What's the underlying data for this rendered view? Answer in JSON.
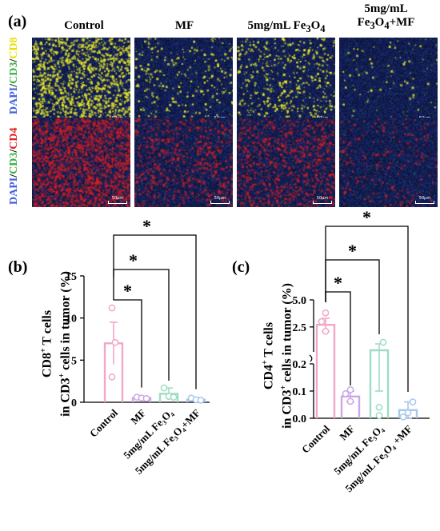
{
  "panel_a": {
    "label": "(a)",
    "columns": [
      {
        "text": "Control"
      },
      {
        "text": "MF"
      },
      {
        "text_parts": [
          "5mg/mL Fe",
          "3",
          "O",
          "4"
        ]
      },
      {
        "line1": "5mg/mL",
        "line2_parts": [
          "Fe",
          "3",
          "O",
          "4",
          "+MF"
        ]
      }
    ],
    "row_labels": [
      {
        "dapi": "DAPI",
        "slash1": "/",
        "cd3": "CD3",
        "slash2": "/",
        "marker": "CD8",
        "dapi_color": "#3f5fe0",
        "cd3_color": "#3cb043",
        "marker_color": "#e8e000"
      },
      {
        "dapi": "DAPI",
        "slash1": "/",
        "cd3": "CD3",
        "slash2": "/",
        "marker": "CD4",
        "dapi_color": "#3f5fe0",
        "cd3_color": "#3cb043",
        "marker_color": "#e02020"
      }
    ],
    "scale_bar": "50μm",
    "density": {
      "cd8": [
        0.95,
        0.18,
        0.35,
        0.06
      ],
      "cd4": [
        0.95,
        0.35,
        0.4,
        0.12
      ]
    }
  },
  "chart_data": [
    {
      "panel": "(b)",
      "type": "bar",
      "ylabel_line1": "CD8",
      "ylabel_sup1": "+",
      "ylabel_line1_rest": " T cells",
      "ylabel_line2": "in CD3",
      "ylabel_sup2": "+",
      "ylabel_line2_rest": " cells in tumor (%)",
      "ylim": [
        0,
        15
      ],
      "yticks": [
        "0",
        "5",
        "10",
        "15"
      ],
      "ytick_values": [
        0,
        5,
        10,
        15
      ],
      "categories": [
        "Control",
        "MF",
        "5mg/mL Fe₃O₄",
        "5mg/mL Fe₃O₄+MF"
      ],
      "values": [
        7.0,
        0.5,
        1.0,
        0.3
      ],
      "errors": [
        2.5,
        0.15,
        0.7,
        0.25
      ],
      "points": [
        [
          11.2,
          7.1,
          3.0
        ],
        [
          0.6,
          0.5,
          0.45
        ],
        [
          1.7,
          0.7,
          0.6
        ],
        [
          0.5,
          0.3,
          0.25
        ]
      ],
      "colors": [
        "#f2a7c8",
        "#cba7e8",
        "#9fdcc4",
        "#a6c8ec"
      ],
      "significance": [
        {
          "from": 0,
          "to": 1,
          "label": "*"
        },
        {
          "from": 0,
          "to": 2,
          "label": "*"
        },
        {
          "from": 0,
          "to": 3,
          "label": "*"
        }
      ]
    },
    {
      "panel": "(c)",
      "type": "bar",
      "broken_axis": true,
      "ylabel_line1": "CD4",
      "ylabel_sup1": "+",
      "ylabel_line1_rest": " T cells",
      "ylabel_line2": "in CD3",
      "ylabel_sup2": "+",
      "ylabel_line2_rest": " cells in tumor (%)",
      "lower_ylim": [
        0,
        0.2
      ],
      "upper_ylim": [
        0.2,
        5.0
      ],
      "yticks_lower": [
        "0.0",
        "0.1",
        "0.2"
      ],
      "ytick_lower_values": [
        0,
        0.1,
        0.2
      ],
      "yticks_upper": [
        "2.5",
        "5.0"
      ],
      "ytick_upper_values": [
        2.5,
        5.0
      ],
      "categories": [
        "Control",
        "MF",
        "5mg/mL Fe₃O₄",
        "5mg/mL Fe₃O₄ +MF"
      ],
      "values": [
        2.7,
        0.08,
        0.17,
        0.03
      ],
      "errors": [
        0.6,
        0.02,
        0.07,
        0.03
      ],
      "points": [
        [
          3.8,
          3.0,
          2.1
        ],
        [
          0.105,
          0.09,
          0.062
        ],
        [
          0.33,
          0.04,
          0.01
        ],
        [
          0.06,
          0.02,
          0.005
        ]
      ],
      "colors": [
        "#f2a7c8",
        "#cba7e8",
        "#9fdcc4",
        "#a6c8ec"
      ],
      "significance": [
        {
          "from": 0,
          "to": 1,
          "label": "*"
        },
        {
          "from": 0,
          "to": 2,
          "label": "*"
        },
        {
          "from": 0,
          "to": 3,
          "label": "*"
        }
      ]
    }
  ]
}
